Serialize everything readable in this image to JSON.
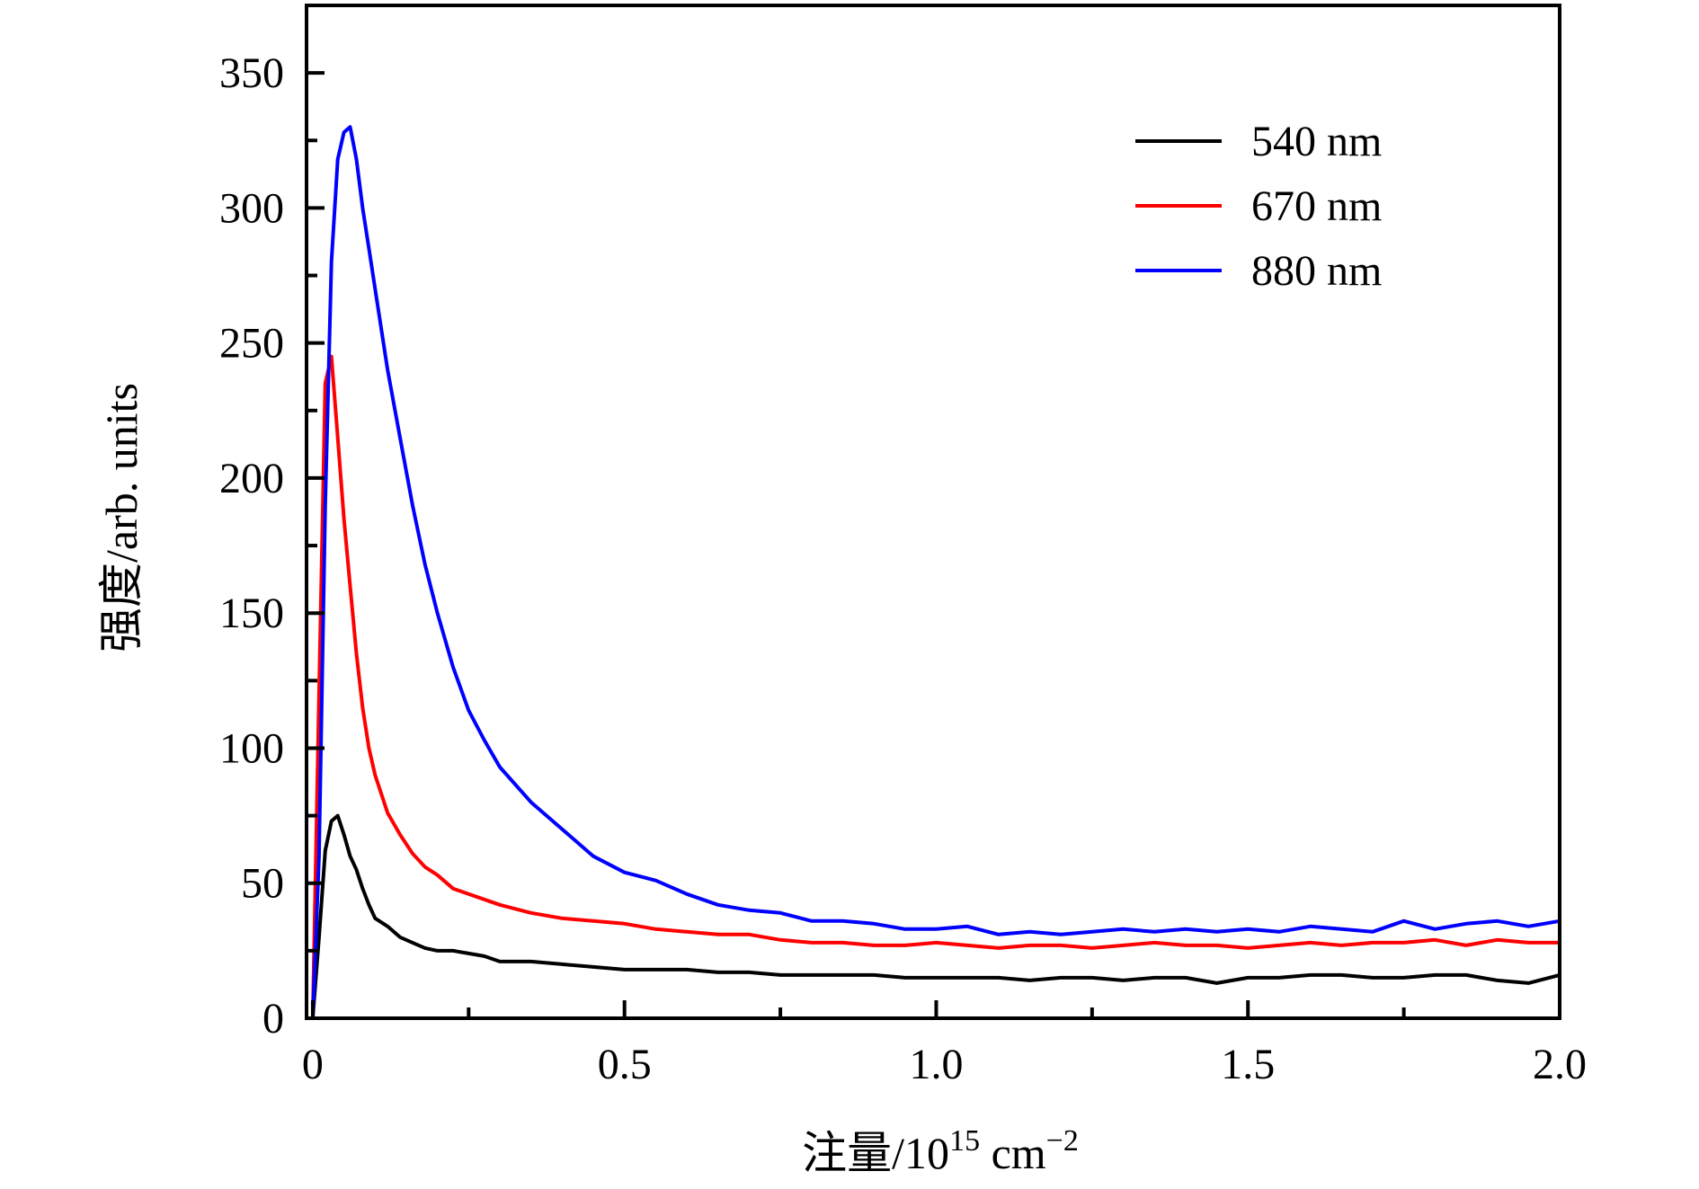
{
  "chart_data": {
    "type": "line",
    "title": "",
    "xlabel": "注量/10",
    "xlabel_sup": "15",
    "xlabel_unit": " cm",
    "xlabel_unit_sup": "−2",
    "ylabel": "强度/arb. units",
    "xlim": [
      -0.01,
      2.0
    ],
    "ylim": [
      0,
      375
    ],
    "xticks": [
      0,
      0.5,
      1.0,
      1.5,
      2.0
    ],
    "xtick_labels": [
      "0",
      "0.5",
      "1.0",
      "1.5",
      "2.0"
    ],
    "xminor": [
      0.25,
      0.75,
      1.25,
      1.75
    ],
    "yticks": [
      0,
      50,
      100,
      150,
      200,
      250,
      300,
      350
    ],
    "ytick_labels": [
      "0",
      "50",
      "100",
      "150",
      "200",
      "250",
      "300",
      "350"
    ],
    "yminor": [
      25,
      75,
      125,
      175,
      225,
      275,
      325
    ],
    "grid": false,
    "legend_position": "top-right",
    "x": [
      0,
      0.01,
      0.02,
      0.03,
      0.04,
      0.05,
      0.06,
      0.07,
      0.08,
      0.09,
      0.1,
      0.12,
      0.14,
      0.16,
      0.18,
      0.2,
      0.225,
      0.25,
      0.275,
      0.3,
      0.35,
      0.4,
      0.45,
      0.5,
      0.55,
      0.6,
      0.65,
      0.7,
      0.75,
      0.8,
      0.85,
      0.9,
      0.95,
      1.0,
      1.05,
      1.1,
      1.15,
      1.2,
      1.25,
      1.3,
      1.35,
      1.4,
      1.45,
      1.5,
      1.55,
      1.6,
      1.65,
      1.7,
      1.75,
      1.8,
      1.85,
      1.9,
      1.95,
      2.0
    ],
    "series": [
      {
        "name": "540 nm",
        "color": "#000000",
        "values": [
          0,
          30,
          62,
          73,
          75,
          68,
          60,
          55,
          48,
          42,
          37,
          34,
          30,
          28,
          26,
          25,
          25,
          24,
          23,
          21,
          21,
          20,
          19,
          18,
          18,
          18,
          17,
          17,
          16,
          16,
          16,
          16,
          15,
          15,
          15,
          15,
          14,
          15,
          15,
          14,
          15,
          15,
          13,
          15,
          15,
          16,
          16,
          15,
          15,
          16,
          16,
          14,
          13,
          16
        ]
      },
      {
        "name": "670 nm",
        "color": "#ff0000",
        "values": [
          0,
          120,
          235,
          245,
          215,
          185,
          160,
          135,
          115,
          100,
          90,
          76,
          68,
          61,
          56,
          53,
          48,
          46,
          44,
          42,
          39,
          37,
          36,
          35,
          33,
          32,
          31,
          31,
          29,
          28,
          28,
          27,
          27,
          28,
          27,
          26,
          27,
          27,
          26,
          27,
          28,
          27,
          27,
          26,
          27,
          28,
          27,
          28,
          28,
          29,
          27,
          29,
          28,
          28
        ]
      },
      {
        "name": "880 nm",
        "color": "#0000ff",
        "values": [
          0,
          60,
          190,
          280,
          318,
          328,
          330,
          318,
          300,
          285,
          270,
          240,
          215,
          190,
          168,
          150,
          130,
          114,
          103,
          93,
          80,
          70,
          60,
          54,
          51,
          46,
          42,
          40,
          39,
          36,
          36,
          35,
          33,
          33,
          34,
          31,
          32,
          31,
          32,
          33,
          32,
          33,
          32,
          33,
          32,
          34,
          33,
          32,
          36,
          33,
          35,
          36,
          34,
          36
        ]
      }
    ]
  }
}
